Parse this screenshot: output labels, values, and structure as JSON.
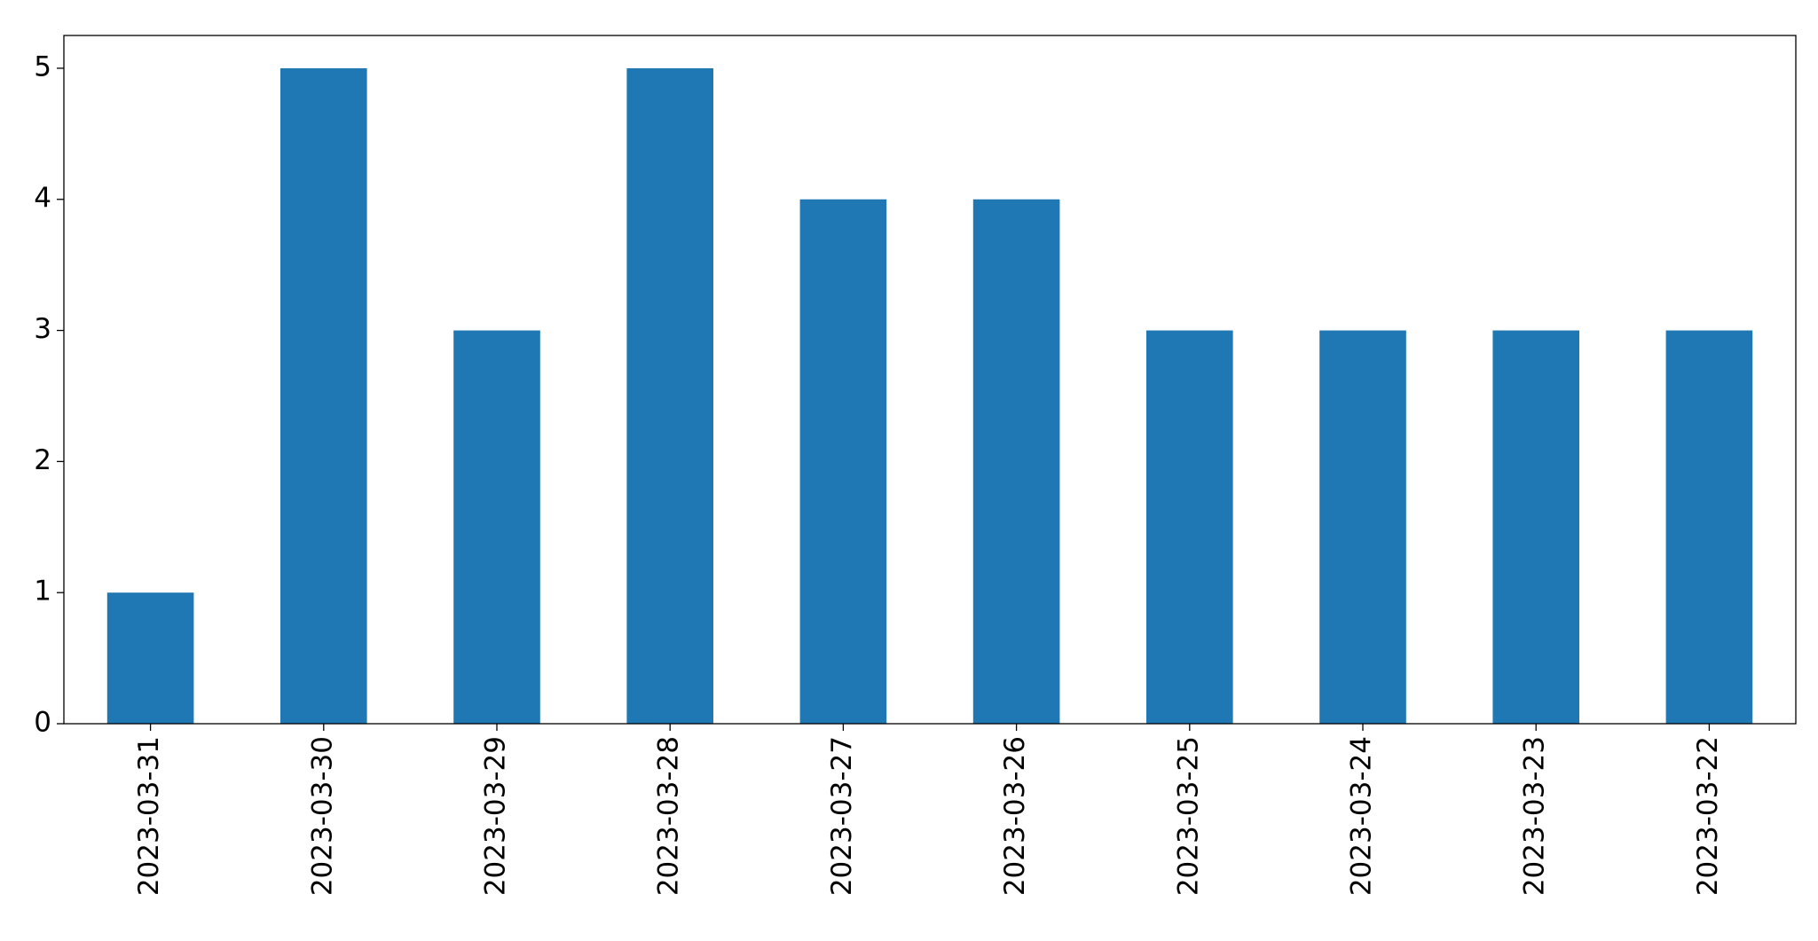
{
  "chart_data": {
    "type": "bar",
    "categories": [
      "2023-03-31",
      "2023-03-30",
      "2023-03-29",
      "2023-03-28",
      "2023-03-27",
      "2023-03-26",
      "2023-03-25",
      "2023-03-24",
      "2023-03-23",
      "2023-03-22"
    ],
    "values": [
      1,
      5,
      3,
      5,
      4,
      4,
      3,
      3,
      3,
      3
    ],
    "color": "#1f77b4",
    "ylim": [
      0,
      5.25
    ],
    "yticks": [
      0,
      1,
      2,
      3,
      4,
      5
    ],
    "grid": false
  }
}
